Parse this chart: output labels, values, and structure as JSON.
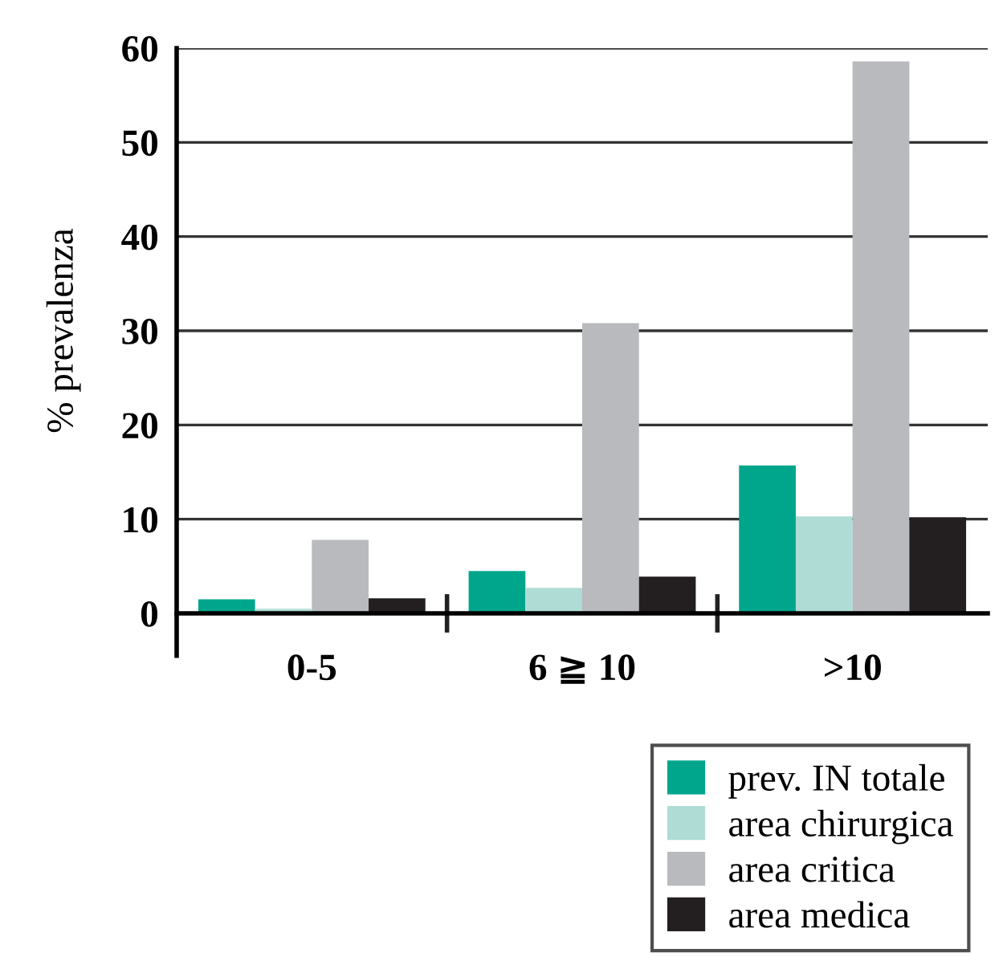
{
  "chart_data": {
    "type": "bar",
    "ylabel": "% prevalenza",
    "categories": [
      "0-5",
      "6 ≧ 10",
      ">10"
    ],
    "series": [
      {
        "name": "prev. IN totale",
        "color": "#00a68c",
        "values": [
          1.5,
          4.5,
          15.7
        ]
      },
      {
        "name": "area chirurgica",
        "color": "#afdcd5",
        "values": [
          0.5,
          2.7,
          10.3
        ]
      },
      {
        "name": "area critica",
        "color": "#b9babe",
        "values": [
          7.8,
          30.8,
          58.6
        ]
      },
      {
        "name": "area medica",
        "color": "#231f20",
        "values": [
          1.6,
          3.9,
          10.2
        ]
      }
    ],
    "ylim": [
      0,
      60
    ],
    "yticks": [
      0,
      10,
      20,
      30,
      40,
      50,
      60
    ],
    "grid": "y",
    "legend": "bottom right"
  }
}
